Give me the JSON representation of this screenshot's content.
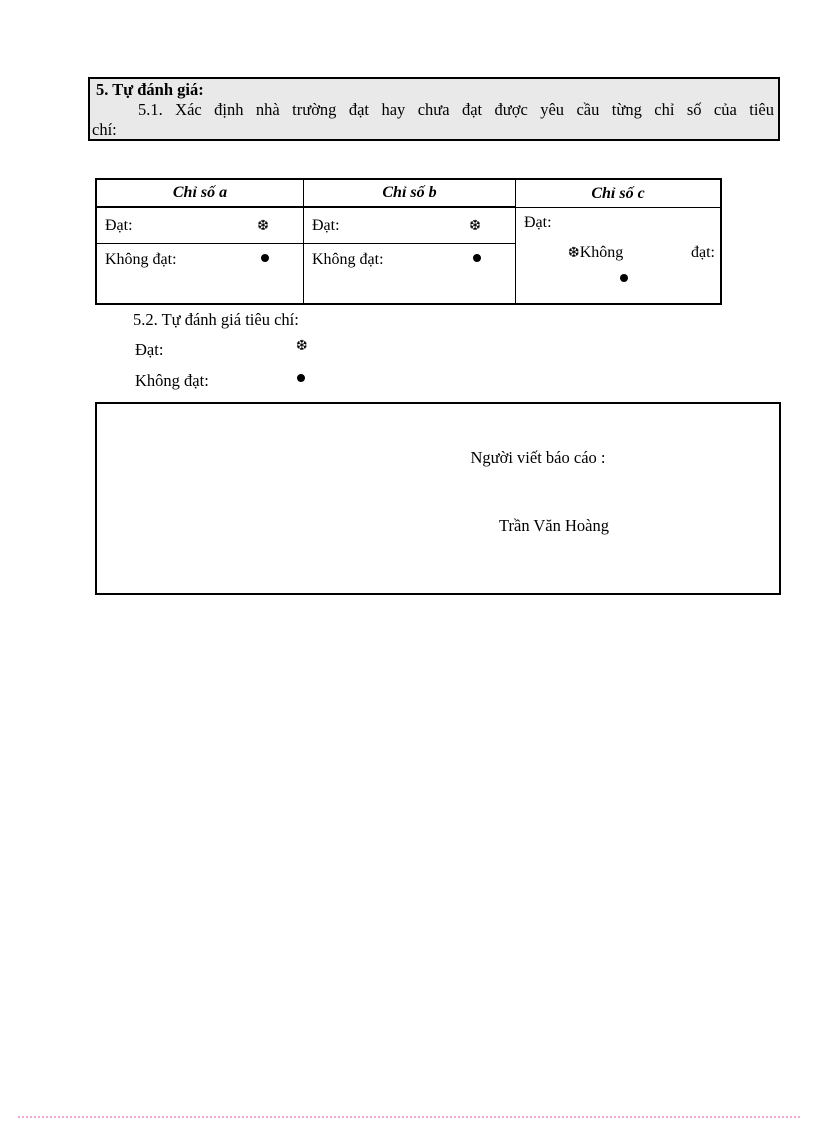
{
  "colors": {
    "section_box_bg": "#e9e9e9",
    "border": "#000000",
    "page_marker": "#f2a7d4"
  },
  "icons": {
    "snowflake": "❆",
    "circle": "heavy-circle-ring"
  },
  "section_5": {
    "heading": "5. Tự đánh giá:",
    "para_line1": "5.1. Xác định nhà trường đạt hay chưa đạt được yêu cầu từng chỉ số của tiêu",
    "para_line2": "chí:"
  },
  "table": {
    "headers": [
      "Chỉ số a",
      "Chỉ số b",
      "Chỉ số c"
    ],
    "dat_label": "Đạt:",
    "khong_dat_label": "Không đạt:",
    "col_c": {
      "dat_label": "Đạt:",
      "khong_word": "Không",
      "dat_word": "đạt:"
    }
  },
  "section_5_2": {
    "heading": "5.2. Tự đánh giá tiêu chí:",
    "dat_label": "Đạt:",
    "khong_dat_label": "Không đạt:"
  },
  "signature": {
    "role_label": "Người viết báo cáo :",
    "name": "Trần Văn Hoàng"
  }
}
